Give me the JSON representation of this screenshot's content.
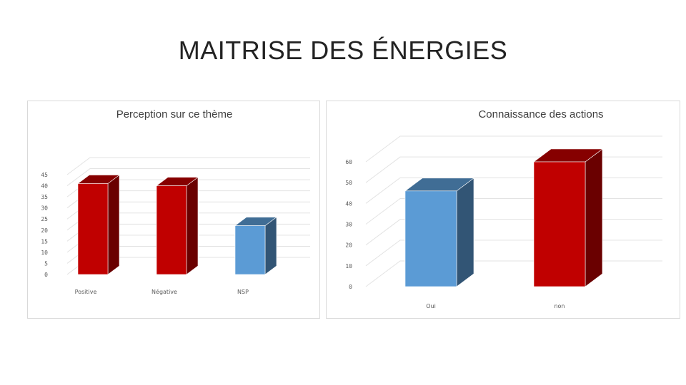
{
  "page": {
    "title": "MAITRISE DES ÉNERGIES"
  },
  "colors": {
    "red": "#c00000",
    "blue": "#5b9bd5"
  },
  "chart_data": [
    {
      "type": "bar",
      "title": "Perception sur ce thème",
      "categories": [
        "Positive",
        "Négative",
        "NSP"
      ],
      "values": [
        41,
        40,
        22
      ],
      "bar_colors": [
        "#c00000",
        "#c00000",
        "#5b9bd5"
      ],
      "ylim": [
        0,
        45
      ],
      "yticks": [
        0,
        5,
        10,
        15,
        20,
        25,
        30,
        35,
        40,
        45
      ],
      "grid": true,
      "style": "3d-column"
    },
    {
      "type": "bar",
      "title": "Connaissance des actions",
      "categories": [
        "Oui",
        "non"
      ],
      "values": [
        46,
        60
      ],
      "bar_colors": [
        "#5b9bd5",
        "#c00000"
      ],
      "ylim": [
        0,
        60
      ],
      "yticks": [
        0,
        10,
        20,
        30,
        40,
        50,
        60
      ],
      "grid": true,
      "style": "3d-column"
    }
  ]
}
